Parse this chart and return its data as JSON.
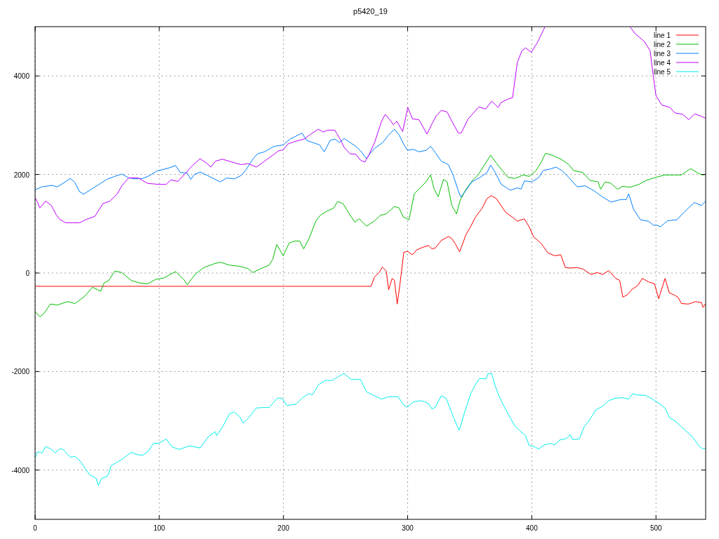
{
  "chart_data": {
    "type": "line",
    "title": "p5420_19",
    "xlim": [
      0,
      540
    ],
    "ylim": [
      -5000,
      5000
    ],
    "xticks": [
      0,
      100,
      200,
      300,
      400,
      500
    ],
    "yticks": [
      -4000,
      -2000,
      0,
      2000,
      4000
    ],
    "grid": true,
    "legend": "top right",
    "marker": "none",
    "line_style": "solid",
    "series": [
      {
        "name": "line 1",
        "color": "#ff0000",
        "x": [
          0,
          270.5,
          273.4,
          277,
          279.6,
          282.8,
          284.7,
          287.5,
          289.4,
          291.6,
          293.7,
          296.9,
          299.8,
          303.9,
          307.3,
          311,
          316.7,
          319.6,
          322.4,
          327.1,
          332.8,
          335.6,
          338.4,
          341.9,
          347,
          350.7,
          354.5,
          360.1,
          363.9,
          367.3,
          371.4,
          375.2,
          379,
          384.6,
          388.4,
          394,
          397.8,
          401.6,
          407.2,
          412.9,
          418.5,
          423.3,
          427,
          430.8,
          436.5,
          441.2,
          447.8,
          452.5,
          457.2,
          461.9,
          467.6,
          470.8,
          473.3,
          477,
          480.8,
          485.5,
          488.9,
          494,
          498.8,
          502.2,
          504.4,
          507.3,
          510.7,
          514.9,
          517.7,
          520.5,
          526.2,
          531.9,
          536.6,
          537.9,
          540
        ],
        "values": [
          -270,
          -270,
          -80,
          10,
          120,
          40,
          -340,
          -110,
          -150,
          -630,
          -250,
          420,
          440,
          370,
          470,
          510,
          560,
          490,
          510,
          660,
          740,
          700,
          590,
          430,
          780,
          940,
          1130,
          1320,
          1510,
          1570,
          1510,
          1370,
          1230,
          1130,
          1050,
          1100,
          940,
          730,
          610,
          410,
          350,
          370,
          110,
          100,
          110,
          80,
          -30,
          10,
          -30,
          50,
          -110,
          -150,
          -490,
          -440,
          -330,
          -250,
          -110,
          -180,
          -220,
          -520,
          -340,
          -110,
          -400,
          -450,
          -490,
          -620,
          -630,
          -580,
          -600,
          -700,
          -620
        ]
      },
      {
        "name": "line 2",
        "color": "#00c000",
        "x": [
          0,
          3.8,
          7.5,
          12.3,
          17.9,
          26.4,
          32,
          39.6,
          46.2,
          52.8,
          55.6,
          59.4,
          64.1,
          69.8,
          77.3,
          83.9,
          90.5,
          97.1,
          103.7,
          113.1,
          119.7,
          122.5,
          129.1,
          135.8,
          143.3,
          148.9,
          156.5,
          164,
          171.5,
          175.3,
          181,
          188.5,
          191.4,
          194.6,
          199.8,
          204.6,
          209.3,
          213,
          216.3,
          220.6,
          226.2,
          230,
          234.7,
          240.4,
          243.6,
          247.9,
          252.6,
          257.4,
          261.1,
          266.8,
          273.4,
          278.1,
          282.8,
          289.4,
          293.1,
          296.4,
          301.1,
          305.4,
          311,
          314.8,
          318.5,
          321.4,
          324.6,
          328.9,
          331.8,
          335.6,
          339.4,
          342.2,
          347,
          352.6,
          357.3,
          362,
          366.8,
          371.5,
          376.2,
          380.9,
          386.6,
          393.1,
          397.9,
          403.4,
          407.2,
          411,
          416.6,
          424.2,
          429.8,
          433.6,
          441.2,
          446.8,
          453.4,
          455.4,
          459.1,
          463.8,
          469.1,
          473.2,
          478.9,
          486.4,
          492.1,
          499.6,
          507.2,
          514.7,
          520.4,
          527.9,
          533.6,
          537.3,
          540
        ],
        "values": [
          -780,
          -890,
          -810,
          -630,
          -650,
          -580,
          -620,
          -480,
          -290,
          -370,
          -200,
          -150,
          40,
          10,
          -150,
          -200,
          -220,
          -130,
          -100,
          30,
          -130,
          -240,
          -20,
          110,
          180,
          220,
          160,
          140,
          90,
          10,
          80,
          160,
          280,
          580,
          350,
          610,
          650,
          650,
          490,
          700,
          1060,
          1180,
          1250,
          1320,
          1450,
          1410,
          1220,
          1030,
          1100,
          950,
          1060,
          1170,
          1200,
          1350,
          1320,
          1140,
          1080,
          1610,
          1750,
          1850,
          1990,
          1700,
          1550,
          1900,
          1850,
          1370,
          1200,
          1470,
          1700,
          1890,
          2010,
          2200,
          2390,
          2230,
          2080,
          1940,
          1920,
          1990,
          1960,
          2080,
          2230,
          2430,
          2390,
          2300,
          2200,
          2080,
          2040,
          1880,
          1850,
          1700,
          1850,
          1820,
          1700,
          1760,
          1740,
          1800,
          1880,
          1940,
          1990,
          1990,
          1990,
          2120,
          2030,
          1990,
          2000
        ]
      },
      {
        "name": "line 3",
        "color": "#0080ff",
        "x": [
          0,
          5.7,
          13.2,
          17.9,
          22.6,
          28.3,
          32,
          35.8,
          39,
          45.2,
          50.9,
          58.4,
          64.1,
          69.8,
          75.4,
          81.1,
          86.7,
          92.4,
          98,
          107.5,
          113.1,
          116.9,
          122.5,
          125.4,
          128.2,
          132.9,
          139.5,
          148.9,
          154.5,
          160.3,
          165.9,
          169.7,
          175.3,
          179.1,
          184.8,
          192.3,
          199.8,
          205.5,
          210.2,
          214.9,
          218.7,
          223.4,
          229.1,
          232.8,
          237.6,
          241.3,
          245.1,
          248.9,
          253.6,
          258.3,
          262.1,
          266.8,
          269.6,
          273.4,
          280,
          284.7,
          289.4,
          293.2,
          296.9,
          299.8,
          304.5,
          309.2,
          314.8,
          318.6,
          322.4,
          327.1,
          332.8,
          336.6,
          340.4,
          342.8,
          347,
          351.7,
          358.3,
          364,
          366.8,
          370.6,
          375.3,
          379,
          382.8,
          388.5,
          391.3,
          394.1,
          399.7,
          405.3,
          409.1,
          414.8,
          419.5,
          424.2,
          429.8,
          436.5,
          443.1,
          450.6,
          457.2,
          463.8,
          471.4,
          476.1,
          478,
          481.8,
          487.5,
          494.1,
          497.9,
          500.8,
          503.6,
          509.3,
          516.8,
          522.5,
          526.2,
          530.9,
          536.6,
          540
        ],
        "values": [
          1690,
          1750,
          1780,
          1750,
          1820,
          1920,
          1840,
          1650,
          1600,
          1700,
          1790,
          1910,
          1960,
          2010,
          1930,
          1910,
          1920,
          1980,
          2070,
          2130,
          2180,
          2040,
          2030,
          1900,
          2000,
          2050,
          1970,
          1850,
          1930,
          1910,
          1980,
          2090,
          2310,
          2420,
          2460,
          2570,
          2600,
          2720,
          2780,
          2840,
          2690,
          2650,
          2600,
          2460,
          2690,
          2720,
          2650,
          2730,
          2650,
          2570,
          2480,
          2320,
          2420,
          2530,
          2650,
          2800,
          2920,
          2800,
          2610,
          2490,
          2510,
          2460,
          2490,
          2570,
          2440,
          2270,
          2200,
          1990,
          1700,
          1540,
          1680,
          1850,
          1940,
          2040,
          2190,
          2040,
          1800,
          1740,
          1680,
          1730,
          1700,
          1870,
          1850,
          1930,
          2080,
          2110,
          2150,
          2080,
          1940,
          1750,
          1770,
          1660,
          1540,
          1440,
          1490,
          1490,
          1610,
          1300,
          1080,
          1050,
          970,
          970,
          940,
          1060,
          1080,
          1230,
          1320,
          1430,
          1370,
          1460
        ]
      },
      {
        "name": "line 4",
        "color": "#c000ff",
        "x": [
          0,
          1.9,
          3.8,
          8.5,
          13.2,
          17,
          19.8,
          24.5,
          30.2,
          35.8,
          40.5,
          48.1,
          54.7,
          60.3,
          66,
          69.8,
          75.4,
          83,
          90.5,
          99,
          105.6,
          109.4,
          115,
          120.7,
          126.3,
          132.9,
          138.6,
          141.4,
          145.2,
          150.8,
          160.3,
          165.9,
          171.5,
          178.2,
          184.8,
          192.3,
          196.1,
          199.8,
          203.6,
          209.3,
          216.8,
          221.5,
          228.1,
          231.9,
          235.7,
          241.3,
          245.1,
          248.9,
          253.6,
          258.3,
          262.1,
          265.5,
          268.7,
          273.4,
          279,
          281.9,
          285.7,
          288.5,
          291.3,
          296,
          300.1,
          303.9,
          309.1,
          315.6,
          319.6,
          322.8,
          327.1,
          331.8,
          335.6,
          340.9,
          343.1,
          348.8,
          357.3,
          362.9,
          367.7,
          372.9,
          375.2,
          380.8,
          384.5,
          388.3,
          392,
          394.9,
          399.6,
          404.3,
          410.5,
          445,
          479.3,
          483.1,
          490.6,
          495.3,
          498.1,
          500,
          504.7,
          511.3,
          515.1,
          521.7,
          526.4,
          531.1,
          535.8,
          540
        ],
        "values": [
          1530,
          1440,
          1320,
          1460,
          1370,
          1180,
          1090,
          1020,
          1020,
          1020,
          1080,
          1150,
          1410,
          1460,
          1600,
          1770,
          1930,
          1930,
          1820,
          1800,
          1800,
          1890,
          1860,
          2010,
          2170,
          2320,
          2220,
          2150,
          2270,
          2310,
          2240,
          2200,
          2220,
          2150,
          2270,
          2410,
          2480,
          2500,
          2620,
          2670,
          2720,
          2810,
          2920,
          2860,
          2900,
          2900,
          2740,
          2550,
          2420,
          2410,
          2290,
          2250,
          2390,
          2650,
          3080,
          3220,
          3110,
          3010,
          3080,
          2870,
          3360,
          3130,
          3110,
          2820,
          3030,
          3180,
          3300,
          3270,
          3080,
          2840,
          2840,
          3130,
          3370,
          3330,
          3490,
          3360,
          3460,
          3530,
          3560,
          4270,
          4510,
          4570,
          4480,
          4670,
          4990,
          null,
          4990,
          4860,
          4700,
          4510,
          3940,
          3600,
          3410,
          3360,
          3250,
          3220,
          3110,
          3230,
          3190,
          3140
        ]
      },
      {
        "name": "line 5",
        "color": "#00eeee",
        "x": [
          0,
          1.9,
          5.7,
          8.5,
          13.2,
          16,
          19.8,
          22.6,
          28.3,
          32,
          36.8,
          40.5,
          44.3,
          49,
          50.9,
          53.6,
          58.4,
          61.3,
          66,
          70.7,
          77.3,
          83,
          86.7,
          91.4,
          95.2,
          99.9,
          105.6,
          110.3,
          116,
          124.4,
          132.9,
          139.5,
          145.2,
          146.1,
          150.8,
          156.5,
          160.3,
          164.9,
          167.4,
          171.6,
          178.2,
          182.9,
          188.5,
          195.1,
          198.9,
          202.7,
          210.2,
          215.9,
          220.6,
          223.4,
          228.1,
          233.8,
          239.4,
          245.1,
          248.9,
          254.5,
          262.1,
          266.8,
          271.5,
          279.1,
          284.7,
          292.2,
          296.9,
          299.8,
          304.5,
          311,
          316.8,
          319.6,
          322.4,
          327.1,
          330.9,
          335.6,
          339.4,
          341.6,
          346,
          350.8,
          354.5,
          357.9,
          363,
          364.8,
          367.7,
          370.5,
          373.3,
          377.1,
          381.3,
          386.5,
          390.3,
          395,
          397.8,
          401.6,
          405.4,
          410,
          414.8,
          418.5,
          422.3,
          427.9,
          430.8,
          432.7,
          438.2,
          442,
          446.8,
          451.5,
          457.2,
          461.9,
          467.6,
          473.2,
          477.9,
          481.3,
          486.4,
          491.2,
          495.9,
          500.3,
          507.2,
          511,
          515.7,
          520.4,
          525.2,
          529.9,
          534.6,
          537.5,
          540
        ],
        "values": [
          -3750,
          -3630,
          -3650,
          -3520,
          -3580,
          -3650,
          -3570,
          -3580,
          -3740,
          -3720,
          -3830,
          -3980,
          -4100,
          -4160,
          -4310,
          -4170,
          -4120,
          -3910,
          -3840,
          -3770,
          -3640,
          -3690,
          -3700,
          -3610,
          -3460,
          -3450,
          -3370,
          -3530,
          -3580,
          -3510,
          -3550,
          -3320,
          -3220,
          -3300,
          -3130,
          -2860,
          -2820,
          -2920,
          -3050,
          -2950,
          -2740,
          -2730,
          -2730,
          -2540,
          -2540,
          -2690,
          -2660,
          -2520,
          -2450,
          -2470,
          -2270,
          -2180,
          -2180,
          -2090,
          -2040,
          -2160,
          -2160,
          -2410,
          -2470,
          -2560,
          -2510,
          -2510,
          -2680,
          -2720,
          -2620,
          -2590,
          -2650,
          -2760,
          -2720,
          -2490,
          -2540,
          -2840,
          -3080,
          -3190,
          -2820,
          -2450,
          -2270,
          -2140,
          -2150,
          -2040,
          -2040,
          -2290,
          -2480,
          -2680,
          -2880,
          -3110,
          -3200,
          -3300,
          -3500,
          -3520,
          -3570,
          -3490,
          -3460,
          -3490,
          -3390,
          -3360,
          -3280,
          -3380,
          -3370,
          -3130,
          -2970,
          -2780,
          -2700,
          -2590,
          -2540,
          -2530,
          -2560,
          -2450,
          -2480,
          -2480,
          -2540,
          -2610,
          -2740,
          -2940,
          -3010,
          -3120,
          -3230,
          -3340,
          -3510,
          -3570,
          -3560
        ]
      }
    ]
  }
}
